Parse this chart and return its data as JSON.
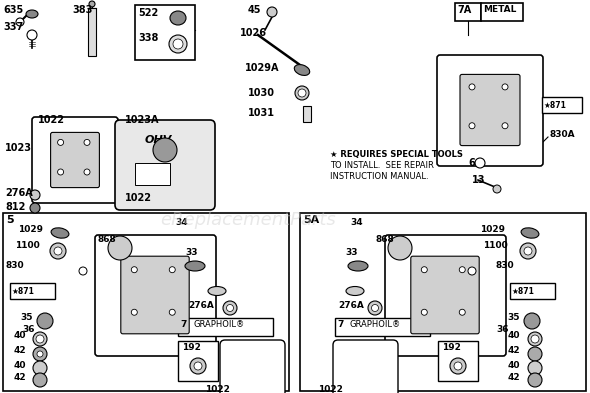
{
  "bg_color": "#ffffff",
  "watermark": "eReplacementParts",
  "watermark_color": "#cccccc",
  "watermark_alpha": 0.45,
  "fig_width": 5.9,
  "fig_height": 3.93,
  "dpi": 100,
  "requires_text": [
    "★ REQUIRES SPECIAL TOOLS",
    "TO INSTALL.  SEE REPAIR",
    "INSTRUCTION MANUAL."
  ]
}
